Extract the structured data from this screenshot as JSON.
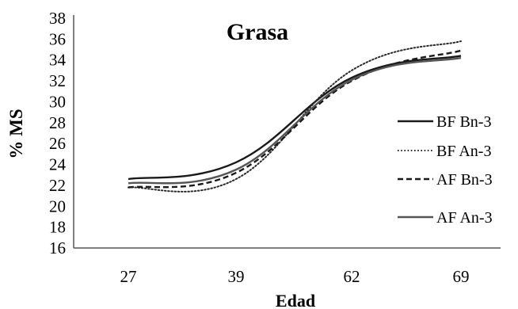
{
  "chart_data": {
    "type": "line",
    "title": "Grasa",
    "xlabel": "Edad",
    "ylabel": "% MS",
    "categories": [
      "27",
      "39",
      "62",
      "69"
    ],
    "ylim": [
      16,
      38
    ],
    "yticks": [
      16,
      18,
      20,
      22,
      24,
      26,
      28,
      30,
      32,
      34,
      36,
      38
    ],
    "grid": false,
    "legend": "right",
    "series": [
      {
        "name": "BF Bn-3",
        "values": [
          22.6,
          24.2,
          32.3,
          34.4
        ],
        "style": "solid",
        "color": "#1a1a1a"
      },
      {
        "name": "BF An-3",
        "values": [
          21.8,
          22.6,
          33.0,
          35.8
        ],
        "style": "dotted",
        "color": "#2a2a2a"
      },
      {
        "name": "AF Bn-3",
        "values": [
          21.8,
          23.2,
          32.0,
          34.9
        ],
        "style": "dashed",
        "color": "#1a1a1a"
      },
      {
        "name": "AF An-3",
        "values": [
          22.2,
          23.5,
          32.1,
          34.2
        ],
        "style": "solid",
        "color": "#555555"
      }
    ]
  }
}
